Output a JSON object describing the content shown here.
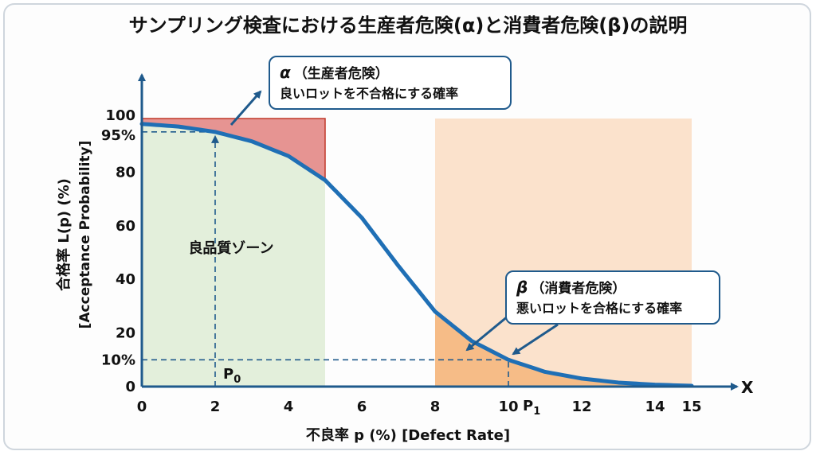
{
  "title": "サンプリング検査における生産者危険(α)と消費者危険(β)の説明",
  "colors": {
    "curve": "#1f6fb5",
    "axis": "#1f5a8c",
    "good_zone": "#e3efdb",
    "alpha_fill": "#e58a8a",
    "beta_band": "#fbe2cc",
    "beta_fill": "#f5b57a"
  },
  "alpha_box": {
    "symbol": "α",
    "heading": "（生産者危険）",
    "body": "良いロットを不合格にする確率"
  },
  "beta_box": {
    "symbol": "β",
    "heading": "（消費者危険）",
    "body": "悪いロットを合格にする確率"
  },
  "zone_label": "良品質ゾーン",
  "chart_data": {
    "type": "line",
    "title": "サンプリング検査における生産者危険(α)と消費者危険(β)の説明",
    "xlabel": "不良率 p (%)  [Defect Rate]",
    "ylabel_line1": "合格率 L(p) (%)",
    "ylabel_line2": "[Acceptance Probability]",
    "x_axis_end_label": "X",
    "xlim": [
      0,
      15
    ],
    "ylim": [
      0,
      100
    ],
    "x_ticks": [
      {
        "value": 0,
        "label": "0"
      },
      {
        "value": 2,
        "label": "2"
      },
      {
        "value": 4,
        "label": "4"
      },
      {
        "value": 6,
        "label": "6"
      },
      {
        "value": 8,
        "label": "8"
      },
      {
        "value": 10,
        "label": "10"
      },
      {
        "value": 12,
        "label": "12"
      },
      {
        "value": 14,
        "label": "14"
      },
      {
        "value": 15,
        "label": "15"
      }
    ],
    "y_ticks": [
      {
        "value": 0,
        "label": "0"
      },
      {
        "value": 10,
        "label": "10%"
      },
      {
        "value": 20,
        "label": "20"
      },
      {
        "value": 40,
        "label": "40"
      },
      {
        "value": 60,
        "label": "60"
      },
      {
        "value": 80,
        "label": "80"
      },
      {
        "value": 95,
        "label": "95%"
      },
      {
        "value": 100,
        "label": "100"
      }
    ],
    "series": [
      {
        "values": [
          {
            "x": 0,
            "y": 98
          },
          {
            "x": 1,
            "y": 97
          },
          {
            "x": 2,
            "y": 95
          },
          {
            "x": 3,
            "y": 91.5
          },
          {
            "x": 4,
            "y": 86
          },
          {
            "x": 5,
            "y": 77
          },
          {
            "x": 6,
            "y": 63
          },
          {
            "x": 7,
            "y": 45
          },
          {
            "x": 8,
            "y": 28
          },
          {
            "x": 9,
            "y": 17
          },
          {
            "x": 10,
            "y": 10
          },
          {
            "x": 11,
            "y": 5.5
          },
          {
            "x": 12,
            "y": 3
          },
          {
            "x": 13,
            "y": 1.5
          },
          {
            "x": 14,
            "y": 0.7
          },
          {
            "x": 15,
            "y": 0.3
          }
        ]
      }
    ],
    "regions": {
      "good_quality_zone": {
        "x": [
          0,
          5
        ],
        "y": [
          0,
          100
        ]
      },
      "alpha_area": {
        "x": [
          0,
          5
        ],
        "y_top": 100
      },
      "beta_band": {
        "x": [
          8,
          15
        ],
        "y": [
          0,
          100
        ]
      },
      "beta_area": {
        "x": [
          8,
          15
        ]
      }
    },
    "points": {
      "P0": {
        "x": 2,
        "y": 95,
        "label": "P",
        "sub": "0"
      },
      "P1": {
        "x": 10,
        "y": 10,
        "label": "P",
        "sub": "1"
      }
    }
  }
}
